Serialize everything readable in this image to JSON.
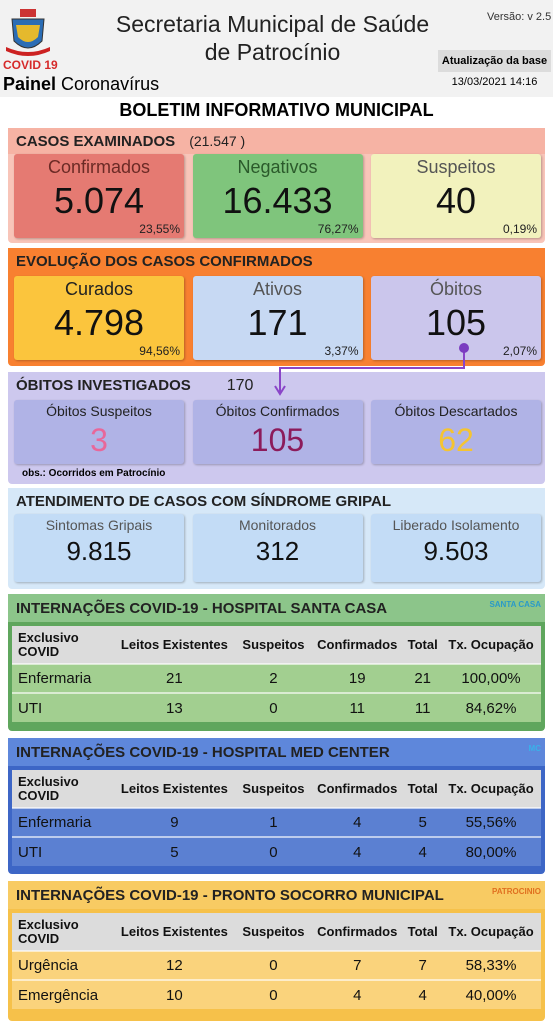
{
  "header": {
    "title": "Secretaria Municipal de Saúde de Patrocínio",
    "version": "Versão: v 2.5",
    "covid_tag": "COVID 19",
    "panel": "Painel",
    "panel_subtitle": "Coronavírus",
    "update_label": "Atualização da base",
    "update_date": "13/03/2021 14:16"
  },
  "bulletin_title": "BOLETIM INFORMATIVO MUNICIPAL",
  "cases_examined": {
    "title": "CASOS EXAMINADOS",
    "total": "(21.547 )",
    "cards": [
      {
        "label": "Confirmados",
        "value": "5.074",
        "percent": "23,55%"
      },
      {
        "label": "Negativos",
        "value": "16.433",
        "percent": "76,27%"
      },
      {
        "label": "Suspeitos",
        "value": "40",
        "percent": "0,19%"
      }
    ]
  },
  "confirmed_evolution": {
    "title": "EVOLUÇÃO DOS CASOS CONFIRMADOS",
    "cards": [
      {
        "label": "Curados",
        "value": "4.798",
        "percent": "94,56%"
      },
      {
        "label": "Ativos",
        "value": "171",
        "percent": "3,37%"
      },
      {
        "label": "Óbitos",
        "value": "105",
        "percent": "2,07%"
      }
    ]
  },
  "deaths_investigated": {
    "title": "ÓBITOS INVESTIGADOS",
    "total": "170",
    "cards": [
      {
        "label": "Óbitos Suspeitos",
        "value": "3"
      },
      {
        "label": "Óbitos Confirmados",
        "value": "105"
      },
      {
        "label": "Óbitos Descartados",
        "value": "62"
      }
    ],
    "note": "obs.: Ocorridos em Patrocínio"
  },
  "flu_syndrome": {
    "title": "ATENDIMENTO DE CASOS COM SÍNDROME GRIPAL",
    "cards": [
      {
        "label": "Sintomas Gripais",
        "value": "9.815"
      },
      {
        "label": "Monitorados",
        "value": "312"
      },
      {
        "label": "Liberado Isolamento",
        "value": "9.503"
      }
    ]
  },
  "hospitals": [
    {
      "title": "INTERNAÇÕES COVID-19 - HOSPITAL SANTA CASA",
      "logo": "SANTA CASA",
      "columns": [
        "Exclusivo COVID",
        "Leitos Existentes",
        "Suspeitos",
        "Confirmados",
        "Total",
        "Tx. Ocupação"
      ],
      "rows": [
        [
          "Enfermaria",
          "21",
          "2",
          "19",
          "21",
          "100,00%"
        ],
        [
          "UTI",
          "13",
          "0",
          "11",
          "11",
          "84,62%"
        ]
      ]
    },
    {
      "title": "INTERNAÇÕES COVID-19 - HOSPITAL MED CENTER",
      "logo": "MC",
      "columns": [
        "Exclusivo COVID",
        "Leitos Existentes",
        "Suspeitos",
        "Confirmados",
        "Total",
        "Tx. Ocupação"
      ],
      "rows": [
        [
          "Enfermaria",
          "9",
          "1",
          "4",
          "5",
          "55,56%"
        ],
        [
          "UTI",
          "5",
          "0",
          "4",
          "4",
          "80,00%"
        ]
      ]
    },
    {
      "title": "INTERNAÇÕES COVID-19 - PRONTO SOCORRO MUNICIPAL",
      "logo": "PATROCINIO",
      "columns": [
        "Exclusivo COVID",
        "Leitos Existentes",
        "Suspeitos",
        "Confirmados",
        "Total",
        "Tx. Ocupação"
      ],
      "rows": [
        [
          "Urgência",
          "12",
          "0",
          "7",
          "7",
          "58,33%"
        ],
        [
          "Emergência",
          "10",
          "0",
          "4",
          "4",
          "40,00%"
        ]
      ]
    }
  ]
}
